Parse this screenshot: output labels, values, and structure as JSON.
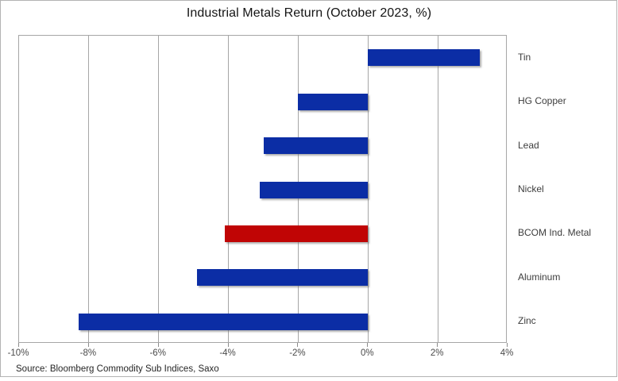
{
  "chart_data": {
    "type": "bar",
    "orientation": "horizontal",
    "title": "Industrial Metals Return (October 2023, %)",
    "categories": [
      "Tin",
      "HG Copper",
      "Lead",
      "Nickel",
      "BCOM Ind. Metal",
      "Aluminum",
      "Zinc"
    ],
    "values": [
      3.2,
      -2.0,
      -3.0,
      -3.1,
      -4.1,
      -4.9,
      -8.3
    ],
    "bar_colors": [
      "#0b2da5",
      "#0b2da5",
      "#0b2da5",
      "#0b2da5",
      "#c00505",
      "#0b2da5",
      "#0b2da5"
    ],
    "xlim": [
      -10,
      4
    ],
    "x_ticks": [
      -10,
      -8,
      -6,
      -4,
      -2,
      0,
      2,
      4
    ],
    "x_tick_labels": [
      "-10%",
      "-8%",
      "-6%",
      "-4%",
      "-2%",
      "0%",
      "2%",
      "4%"
    ],
    "grid": true,
    "legend": false,
    "source": "Source: Bloomberg Commodity Sub Indices, Saxo"
  },
  "colors": {
    "bar_blue": "#0b2da5",
    "bar_red": "#c00505",
    "gridline": "#a6a6a6",
    "frame_border": "#b3b3b3",
    "title_text": "#141414",
    "axis_text": "#4a4a4a"
  }
}
